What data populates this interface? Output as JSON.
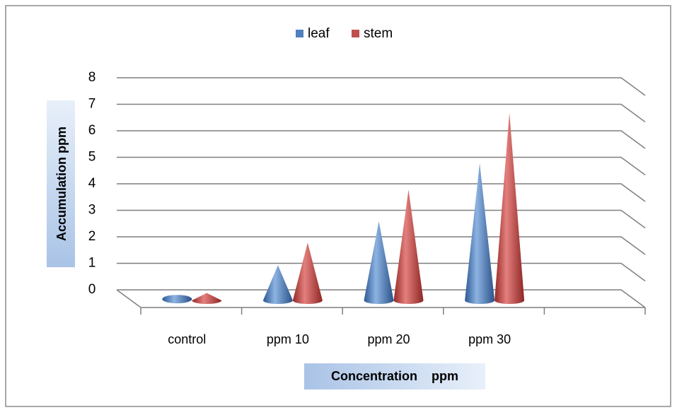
{
  "chart_data": {
    "type": "bar3d-cone",
    "x_label": "Concentration    ppm",
    "y_label": "Accumulation   ppm",
    "categories": [
      "control",
      "ppm 10",
      "ppm 20",
      "ppm 30",
      null
    ],
    "series": [
      {
        "name": "leaf",
        "color": "#4f81bd",
        "values": [
          0.05,
          1.25,
          2.9,
          5.1,
          null
        ]
      },
      {
        "name": "stem",
        "color": "#c0504d",
        "values": [
          0.2,
          2.1,
          4.1,
          7.0,
          null
        ]
      }
    ],
    "ylim": [
      0,
      8
    ],
    "yticks": [
      0,
      1,
      2,
      3,
      4,
      5,
      6,
      7,
      8
    ],
    "grid": true,
    "legend": "top"
  }
}
